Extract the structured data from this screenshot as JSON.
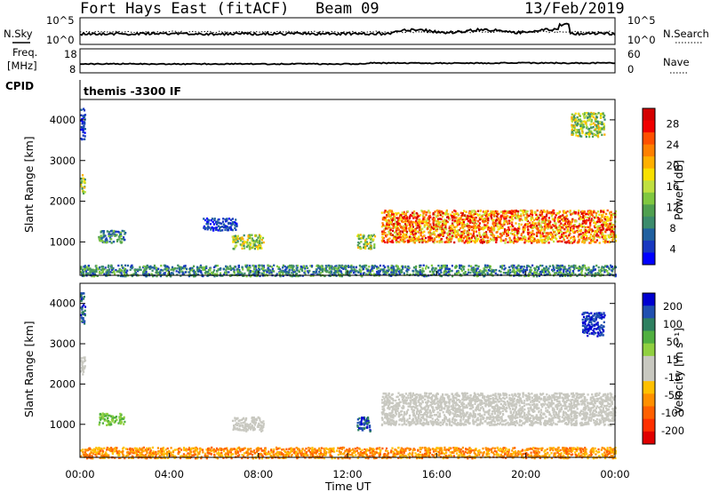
{
  "header": {
    "station": "Fort Hays East (fitACF)",
    "beam": "Beam 09",
    "date": "13/Feb/2019"
  },
  "left_labels": {
    "nsky": "N.Sky",
    "freq_line1": "Freq.",
    "freq_line2": "[MHz]",
    "cpid": "CPID"
  },
  "right_labels": {
    "nsearch": "N.Search",
    "nave": "Nave"
  },
  "cpid_value": "themis -3300 IF",
  "x_axis": {
    "label": "Time UT",
    "ticks": [
      "00:00",
      "04:00",
      "08:00",
      "12:00",
      "16:00",
      "20:00",
      "00:00"
    ]
  },
  "noise_panel": {
    "left_ticks": [
      "10^5",
      "10^0"
    ],
    "right_ticks": [
      "10^5",
      "10^0"
    ]
  },
  "freq_panel": {
    "left_ticks": [
      "18",
      "8"
    ],
    "right_ticks": [
      "60",
      "0"
    ]
  },
  "power_panel": {
    "ylabel": "Slant Range [km]",
    "yticks": [
      "4000",
      "3000",
      "2000",
      "1000"
    ],
    "cbar_label": "Power [dB]",
    "cbar_ticks": [
      "28",
      "24",
      "20",
      "16",
      "12",
      "8",
      "4"
    ],
    "cbar_colors": [
      "#d40000",
      "#f00000",
      "#ff5000",
      "#ff8000",
      "#ffb000",
      "#f8e000",
      "#c0e040",
      "#80c840",
      "#50a050",
      "#3c8c6c",
      "#2060a0",
      "#1838c0",
      "#0000ff"
    ]
  },
  "velocity_panel": {
    "ylabel": "Slant Range [km]",
    "yticks": [
      "4000",
      "3000",
      "2000",
      "1000"
    ],
    "cbar_label": "Velocity [m s⁻¹]",
    "cbar_ticks": [
      "200",
      "100",
      "50",
      "15",
      "-15",
      "-50",
      "-100",
      "-200"
    ],
    "cbar_colors": [
      "#0000d0",
      "#2050b0",
      "#2e8060",
      "#50b040",
      "#90d040",
      "#c8c8c0",
      "#c8c8c0",
      "#ffc000",
      "#ff9000",
      "#ff6000",
      "#ff3000",
      "#e00000"
    ]
  },
  "chart_data": {
    "type": "heatmap",
    "title": "Fort Hays East (fitACF)",
    "x": {
      "label": "Time UT",
      "range_hours": [
        0,
        24
      ]
    },
    "y": {
      "label": "Slant Range [km]",
      "range_km": [
        180,
        4500
      ]
    },
    "panels": [
      {
        "name": "Power [dB]",
        "scale": [
          0,
          30
        ],
        "regions": [
          {
            "t": [
              0.0,
              0.2
            ],
            "r": [
              3500,
              4300
            ],
            "level": "low"
          },
          {
            "t": [
              0.0,
              0.2
            ],
            "r": [
              2200,
              2700
            ],
            "level": "mid"
          },
          {
            "t": [
              0.8,
              2.0
            ],
            "r": [
              1000,
              1300
            ],
            "level": "low-mid"
          },
          {
            "t": [
              5.5,
              7.0
            ],
            "r": [
              1300,
              1600
            ],
            "level": "low"
          },
          {
            "t": [
              6.8,
              8.2
            ],
            "r": [
              850,
              1200
            ],
            "level": "mid"
          },
          {
            "t": [
              12.4,
              13.2
            ],
            "r": [
              850,
              1200
            ],
            "level": "mid"
          },
          {
            "t": [
              13.5,
              24.0
            ],
            "r": [
              1000,
              1800
            ],
            "level": "high"
          },
          {
            "t": [
              22.0,
              23.5
            ],
            "r": [
              3600,
              4200
            ],
            "level": "mid"
          },
          {
            "t": [
              0.0,
              24.0
            ],
            "r": [
              180,
              450
            ],
            "level": "low-mid"
          }
        ]
      },
      {
        "name": "Velocity [m s⁻¹]",
        "scale": [
          -200,
          200
        ],
        "regions": [
          {
            "t": [
              0.0,
              0.2
            ],
            "r": [
              3500,
              4300
            ],
            "level": "positive"
          },
          {
            "t": [
              0.0,
              0.2
            ],
            "r": [
              2200,
              2700
            ],
            "level": "near-zero"
          },
          {
            "t": [
              0.8,
              2.0
            ],
            "r": [
              1000,
              1300
            ],
            "level": "15-50"
          },
          {
            "t": [
              6.8,
              8.2
            ],
            "r": [
              850,
              1200
            ],
            "level": "near-zero"
          },
          {
            "t": [
              12.4,
              13.0
            ],
            "r": [
              850,
              1200
            ],
            "level": "positive"
          },
          {
            "t": [
              13.5,
              24.0
            ],
            "r": [
              1000,
              1800
            ],
            "level": "near-zero"
          },
          {
            "t": [
              22.5,
              23.5
            ],
            "r": [
              3200,
              3800
            ],
            "level": "large positive"
          },
          {
            "t": [
              0.0,
              24.0
            ],
            "r": [
              180,
              450
            ],
            "level": "negative"
          }
        ]
      }
    ]
  }
}
